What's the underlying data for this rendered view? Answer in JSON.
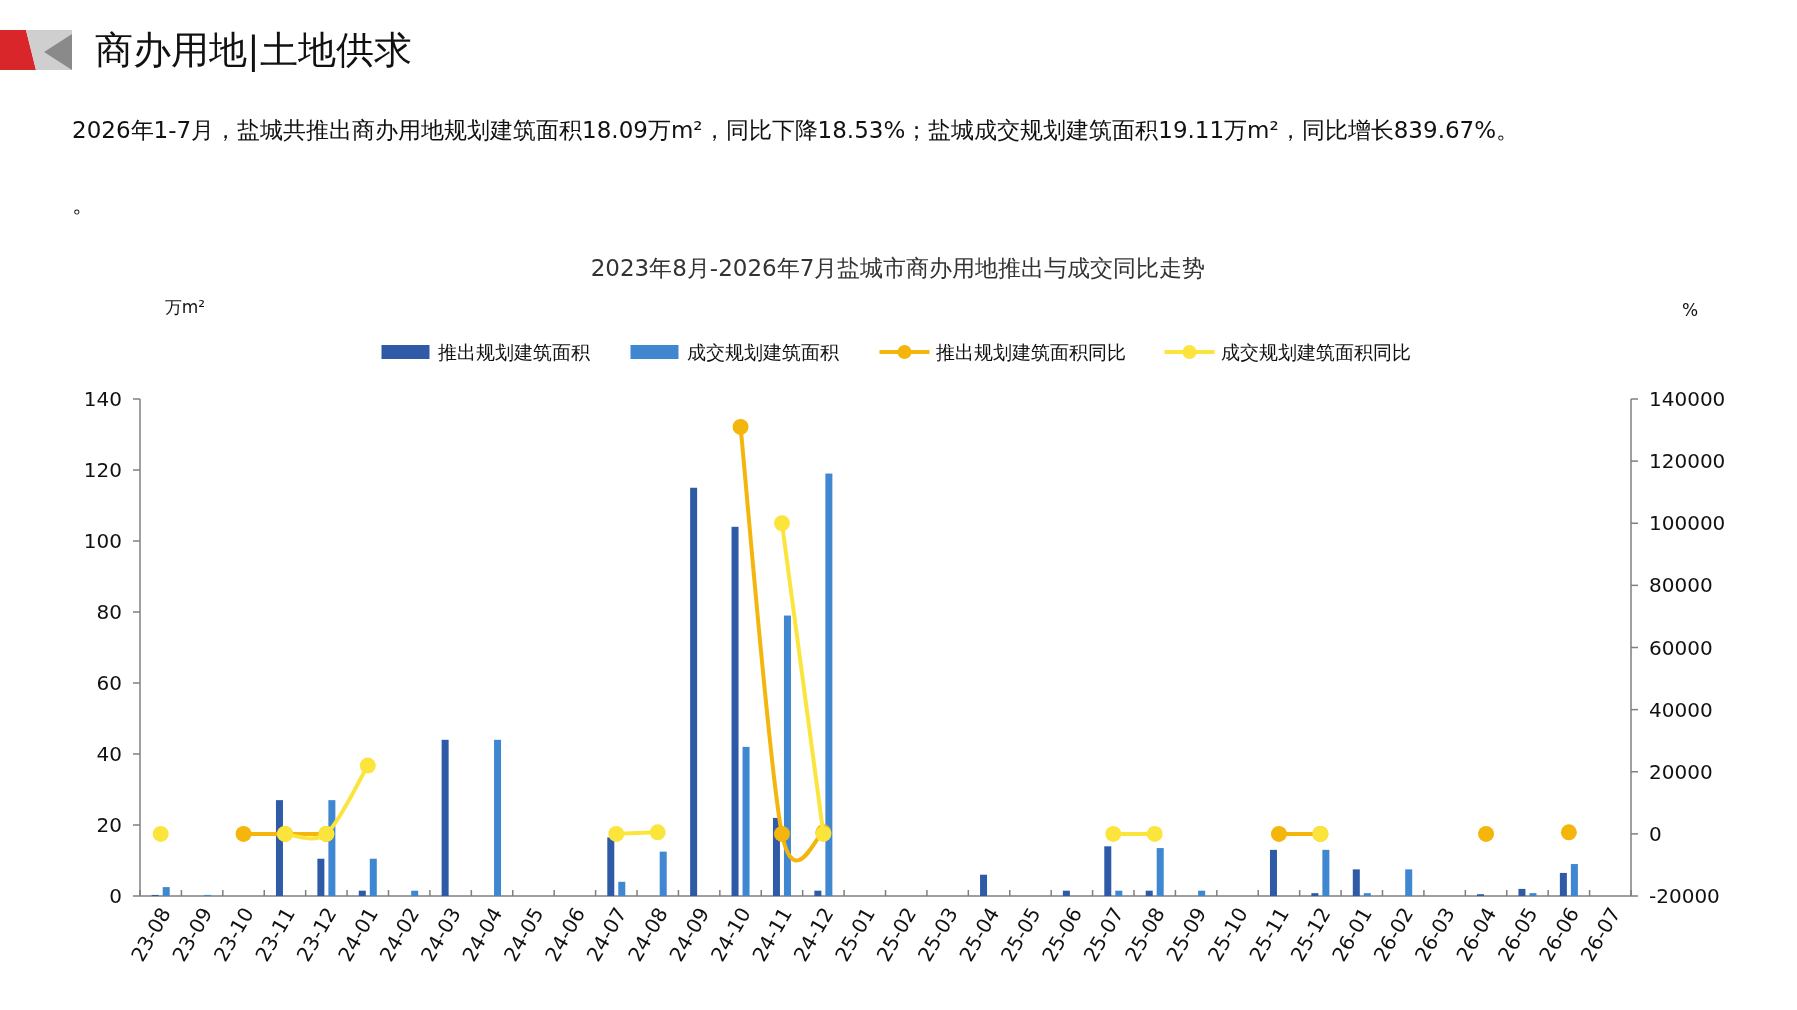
{
  "chart_data": {
    "type": "bar",
    "title": "2023年8月-2026年7月盐城市商办用地推出与成交同比走势",
    "ylabel": "万m²",
    "y2label": "%",
    "annotations": [
      "商办用地|土地供求",
      "2026年1-7月，盐城共推出商办用地规划建筑面积18.09万m²，同比下降18.53%；盐城成交规划建筑面积19.11万m²，同比增长839.67%。",
      "。"
    ],
    "categories": [
      "23-08",
      "23-09",
      "23-10",
      "23-11",
      "23-12",
      "24-01",
      "24-02",
      "24-03",
      "24-04",
      "24-05",
      "24-06",
      "24-07",
      "24-08",
      "24-09",
      "24-10",
      "24-11",
      "24-12",
      "25-01",
      "25-02",
      "25-03",
      "25-04",
      "25-05",
      "25-06",
      "25-07",
      "25-08",
      "25-09",
      "25-10",
      "25-11",
      "25-12",
      "26-01",
      "26-02",
      "26-03",
      "26-04",
      "26-05",
      "26-06",
      "26-07"
    ],
    "ylim": [
      0,
      140
    ],
    "yticks": [
      0,
      20,
      40,
      60,
      80,
      100,
      120,
      140
    ],
    "y2lim": [
      -20000,
      140000
    ],
    "y2ticks": [
      -20000,
      0,
      20000,
      40000,
      60000,
      80000,
      100000,
      120000,
      140000
    ],
    "grid": false,
    "legend": "top",
    "marker": "circle",
    "series": [
      {
        "name": "推出规划建筑面积",
        "color": "#2e5aa6",
        "values": [
          0.3,
          0,
          0,
          27,
          10.5,
          1.5,
          0,
          44,
          0,
          0,
          0,
          16.5,
          0,
          115,
          104,
          22,
          1.5,
          0,
          0,
          0,
          6,
          0,
          1.5,
          14,
          1.5,
          0,
          0,
          13,
          0.8,
          7.5,
          0,
          0,
          0.5,
          2,
          6.5,
          0
        ]
      },
      {
        "name": "成交规划建筑面积",
        "color": "#3f87d0",
        "values": [
          2.5,
          0.3,
          0,
          0,
          27,
          10.5,
          1.5,
          0,
          44,
          0,
          0,
          4,
          12.5,
          0,
          42,
          79,
          119,
          0,
          0,
          0,
          0,
          0,
          0,
          1.5,
          13.5,
          1.5,
          0,
          0,
          13,
          0.8,
          7.5,
          0,
          0,
          0.8,
          9,
          0
        ]
      },
      {
        "name": "推出规划建筑面积同比",
        "type": "line",
        "axis": "y2",
        "color": "#f4b50c",
        "values": [
          null,
          null,
          0,
          0,
          0,
          null,
          null,
          null,
          null,
          null,
          null,
          null,
          null,
          null,
          131000,
          0,
          500,
          null,
          null,
          null,
          null,
          null,
          null,
          null,
          null,
          null,
          null,
          0,
          0,
          null,
          null,
          null,
          0,
          null,
          500,
          null
        ]
      },
      {
        "name": "成交规划建筑面积同比",
        "type": "line",
        "axis": "y2",
        "color": "#fbe53d",
        "values": [
          0,
          null,
          null,
          0,
          0,
          22000,
          null,
          null,
          null,
          null,
          null,
          0,
          500,
          null,
          null,
          100000,
          0,
          null,
          null,
          null,
          null,
          null,
          null,
          0,
          0,
          null,
          null,
          null,
          0,
          null,
          null,
          null,
          null,
          null,
          null,
          null
        ]
      }
    ]
  }
}
